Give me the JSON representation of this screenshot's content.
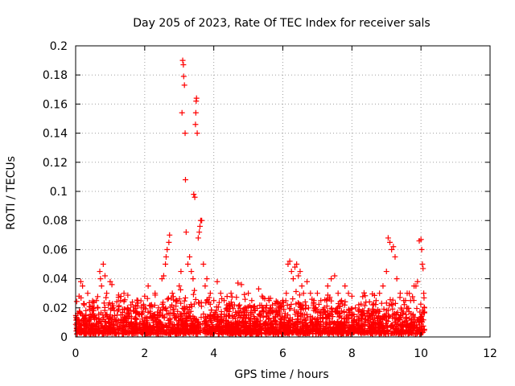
{
  "chart_data": {
    "type": "scatter",
    "title": "Day 205 of 2023, Rate Of TEC Index for receiver sals",
    "xlabel": "GPS time / hours",
    "ylabel": "ROTI / TECUs",
    "xlim": [
      0,
      12
    ],
    "ylim": [
      0,
      0.2
    ],
    "xticks": [
      0,
      2,
      4,
      6,
      8,
      10,
      12
    ],
    "yticks": [
      0,
      0.02,
      0.04,
      0.06,
      0.08,
      0.1,
      0.12,
      0.14,
      0.16,
      0.18,
      0.2
    ],
    "xtick_labels": [
      "0",
      "2",
      "4",
      "6",
      "8",
      "10",
      "12"
    ],
    "ytick_labels": [
      "0",
      "0.02",
      "0.04",
      "0.06",
      "0.08",
      "0.1",
      "0.12",
      "0.14",
      "0.16",
      "0.18",
      "0.2"
    ],
    "grid": true,
    "marker": "+",
    "series": [
      {
        "name": "ROTI",
        "color": "#ff0000",
        "points": [
          [
            0.05,
            0.012
          ],
          [
            0.1,
            0.028
          ],
          [
            0.15,
            0.038
          ],
          [
            0.2,
            0.035
          ],
          [
            0.25,
            0.022
          ],
          [
            0.3,
            0.015
          ],
          [
            0.35,
            0.03
          ],
          [
            0.4,
            0.012
          ],
          [
            0.5,
            0.018
          ],
          [
            0.6,
            0.025
          ],
          [
            0.7,
            0.045
          ],
          [
            0.72,
            0.04
          ],
          [
            0.75,
            0.035
          ],
          [
            0.8,
            0.05
          ],
          [
            0.85,
            0.042
          ],
          [
            0.9,
            0.03
          ],
          [
            0.95,
            0.022
          ],
          [
            1.0,
            0.038
          ],
          [
            1.05,
            0.036
          ],
          [
            1.1,
            0.02
          ],
          [
            1.2,
            0.015
          ],
          [
            1.3,
            0.025
          ],
          [
            1.4,
            0.03
          ],
          [
            1.5,
            0.02
          ],
          [
            1.6,
            0.022
          ],
          [
            1.7,
            0.018
          ],
          [
            1.8,
            0.025
          ],
          [
            1.9,
            0.02
          ],
          [
            2.0,
            0.028
          ],
          [
            2.1,
            0.035
          ],
          [
            2.2,
            0.022
          ],
          [
            2.3,
            0.03
          ],
          [
            2.4,
            0.02
          ],
          [
            2.5,
            0.04
          ],
          [
            2.55,
            0.042
          ],
          [
            2.6,
            0.05
          ],
          [
            2.62,
            0.055
          ],
          [
            2.65,
            0.06
          ],
          [
            2.7,
            0.065
          ],
          [
            2.72,
            0.07
          ],
          [
            2.8,
            0.03
          ],
          [
            2.9,
            0.025
          ],
          [
            3.0,
            0.035
          ],
          [
            3.05,
            0.045
          ],
          [
            3.08,
            0.154
          ],
          [
            3.1,
            0.19
          ],
          [
            3.12,
            0.187
          ],
          [
            3.13,
            0.179
          ],
          [
            3.15,
            0.173
          ],
          [
            3.17,
            0.14
          ],
          [
            3.18,
            0.108
          ],
          [
            3.2,
            0.072
          ],
          [
            3.25,
            0.05
          ],
          [
            3.3,
            0.055
          ],
          [
            3.35,
            0.045
          ],
          [
            3.4,
            0.04
          ],
          [
            3.42,
            0.098
          ],
          [
            3.45,
            0.096
          ],
          [
            3.47,
            0.146
          ],
          [
            3.48,
            0.154
          ],
          [
            3.49,
            0.162
          ],
          [
            3.5,
            0.164
          ],
          [
            3.52,
            0.14
          ],
          [
            3.55,
            0.068
          ],
          [
            3.58,
            0.072
          ],
          [
            3.6,
            0.076
          ],
          [
            3.62,
            0.08
          ],
          [
            3.65,
            0.08
          ],
          [
            3.7,
            0.05
          ],
          [
            3.75,
            0.035
          ],
          [
            3.8,
            0.04
          ],
          [
            3.9,
            0.03
          ],
          [
            4.0,
            0.025
          ],
          [
            4.1,
            0.038
          ],
          [
            4.2,
            0.03
          ],
          [
            4.3,
            0.025
          ],
          [
            4.4,
            0.02
          ],
          [
            4.5,
            0.03
          ],
          [
            4.6,
            0.022
          ],
          [
            4.7,
            0.037
          ],
          [
            4.8,
            0.036
          ],
          [
            4.9,
            0.02
          ],
          [
            5.0,
            0.03
          ],
          [
            5.1,
            0.025
          ],
          [
            5.2,
            0.018
          ],
          [
            5.3,
            0.033
          ],
          [
            5.4,
            0.028
          ],
          [
            5.5,
            0.02
          ],
          [
            5.6,
            0.025
          ],
          [
            5.7,
            0.022
          ],
          [
            5.8,
            0.018
          ],
          [
            5.9,
            0.02
          ],
          [
            6.0,
            0.025
          ],
          [
            6.1,
            0.03
          ],
          [
            6.15,
            0.05
          ],
          [
            6.2,
            0.052
          ],
          [
            6.25,
            0.045
          ],
          [
            6.3,
            0.04
          ],
          [
            6.35,
            0.048
          ],
          [
            6.4,
            0.05
          ],
          [
            6.45,
            0.042
          ],
          [
            6.5,
            0.045
          ],
          [
            6.55,
            0.035
          ],
          [
            6.6,
            0.03
          ],
          [
            6.7,
            0.038
          ],
          [
            6.8,
            0.03
          ],
          [
            6.9,
            0.025
          ],
          [
            7.0,
            0.03
          ],
          [
            7.1,
            0.025
          ],
          [
            7.2,
            0.02
          ],
          [
            7.3,
            0.035
          ],
          [
            7.4,
            0.04
          ],
          [
            7.5,
            0.042
          ],
          [
            7.6,
            0.03
          ],
          [
            7.7,
            0.025
          ],
          [
            7.8,
            0.035
          ],
          [
            7.9,
            0.03
          ],
          [
            8.0,
            0.028
          ],
          [
            8.1,
            0.02
          ],
          [
            8.2,
            0.018
          ],
          [
            8.3,
            0.015
          ],
          [
            8.4,
            0.012
          ],
          [
            8.5,
            0.018
          ],
          [
            8.6,
            0.022
          ],
          [
            8.7,
            0.025
          ],
          [
            8.8,
            0.03
          ],
          [
            8.9,
            0.035
          ],
          [
            9.0,
            0.045
          ],
          [
            9.05,
            0.068
          ],
          [
            9.1,
            0.065
          ],
          [
            9.15,
            0.06
          ],
          [
            9.2,
            0.062
          ],
          [
            9.25,
            0.055
          ],
          [
            9.3,
            0.04
          ],
          [
            9.4,
            0.03
          ],
          [
            9.5,
            0.025
          ],
          [
            9.6,
            0.03
          ],
          [
            9.7,
            0.025
          ],
          [
            9.8,
            0.035
          ],
          [
            9.9,
            0.038
          ],
          [
            9.95,
            0.066
          ],
          [
            10.0,
            0.067
          ],
          [
            10.02,
            0.06
          ],
          [
            10.04,
            0.05
          ],
          [
            10.06,
            0.047
          ],
          [
            10.08,
            0.03
          ],
          [
            10.1,
            0.02
          ]
        ]
      }
    ]
  }
}
